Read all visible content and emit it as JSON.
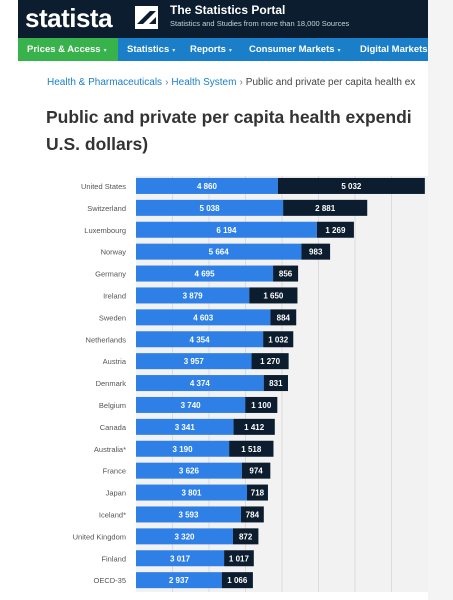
{
  "header": {
    "logo_text": "statista",
    "portal_title": "The Statistics Portal",
    "portal_subtitle": "Statistics and Studies from more than 18,000 Sources"
  },
  "nav": {
    "items": [
      {
        "label": "Prices & Access",
        "active": true
      },
      {
        "label": "Statistics"
      },
      {
        "label": "Reports"
      },
      {
        "label": "Consumer Markets"
      },
      {
        "label": "Digital Markets"
      }
    ],
    "caret": "▾"
  },
  "breadcrumb": {
    "items": [
      "Health & Pharmaceuticals",
      "Health System"
    ],
    "current": "Public and private per capita health ex",
    "separator": "›"
  },
  "page": {
    "title_line1": "Public and private per capita health expendi",
    "title_line2": "U.S. dollars)"
  },
  "chart_data": {
    "type": "bar",
    "orientation": "horizontal",
    "stacked": true,
    "categories": [
      "United States",
      "Switzerland",
      "Luxembourg",
      "Norway",
      "Germany",
      "Ireland",
      "Sweden",
      "Netherlands",
      "Austria",
      "Denmark",
      "Belgium",
      "Canada",
      "Australia*",
      "France",
      "Japan",
      "Iceland*",
      "United Kingdom",
      "Finland",
      "OECD-35"
    ],
    "series": [
      {
        "values": [
          4860,
          5038,
          6194,
          5664,
          4695,
          3879,
          4603,
          4354,
          3957,
          4374,
          3740,
          3341,
          3190,
          3626,
          3801,
          3593,
          3320,
          3017,
          2937
        ],
        "labels": [
          "4 860",
          "5 038",
          "6 194",
          "5 664",
          "4 695",
          "3 879",
          "4 603",
          "4 354",
          "3 957",
          "4 374",
          "3 740",
          "3 341",
          "3 190",
          "3 626",
          "3 801",
          "3 593",
          "3 320",
          "3 017",
          "2 937"
        ],
        "color": "#2f80e6"
      },
      {
        "values": [
          5032,
          2881,
          1269,
          983,
          856,
          1650,
          884,
          1032,
          1270,
          831,
          1100,
          1412,
          1518,
          974,
          718,
          784,
          872,
          1017,
          1066
        ],
        "labels": [
          "5 032",
          "2 881",
          "1 269",
          "983",
          "856",
          "1 650",
          "884",
          "1 032",
          "1 270",
          "831",
          "1 100",
          "1 412",
          "1 518",
          "974",
          "718",
          "784",
          "872",
          "1 017",
          "1 066"
        ],
        "color": "#0b1d2e"
      }
    ],
    "grid": true,
    "legend": "none",
    "title": "",
    "xlabel": "",
    "ylabel": ""
  }
}
